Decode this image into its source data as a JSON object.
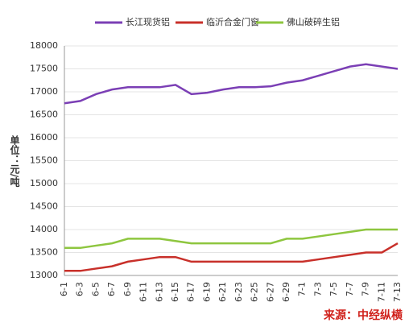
{
  "chart_data": {
    "type": "line",
    "y_label": "单位：元/吨",
    "source": "来源：中经纵横",
    "categories": [
      "6-1",
      "6-3",
      "6-5",
      "6-7",
      "6-9",
      "6-11",
      "6-13",
      "6-15",
      "6-17",
      "6-19",
      "6-21",
      "6-23",
      "6-25",
      "6-27",
      "6-29",
      "7-1",
      "7-3",
      "7-5",
      "7-7",
      "7-9",
      "7-11",
      "7-13"
    ],
    "series": [
      {
        "name": "长江现货铝",
        "color": "#7b3fb5",
        "values": [
          16750,
          16800,
          16950,
          17050,
          17100,
          17100,
          17100,
          17150,
          16950,
          16980,
          17050,
          17100,
          17100,
          17120,
          17200,
          17250,
          17350,
          17450,
          17550,
          17600,
          17550,
          17500
        ]
      },
      {
        "name": "临沂合金门窗",
        "color": "#c8302a",
        "values": [
          13100,
          13100,
          13150,
          13200,
          13300,
          13350,
          13400,
          13400,
          13300,
          13300,
          13300,
          13300,
          13300,
          13300,
          13300,
          13300,
          13350,
          13400,
          13450,
          13500,
          13500,
          13700
        ]
      },
      {
        "name": "佛山破碎生铝",
        "color": "#8ec63f",
        "values": [
          13600,
          13600,
          13650,
          13700,
          13800,
          13800,
          13800,
          13750,
          13700,
          13700,
          13700,
          13700,
          13700,
          13700,
          13800,
          13800,
          13850,
          13900,
          13950,
          14000,
          14000,
          14000
        ]
      }
    ],
    "ylim": [
      13000,
      18000
    ],
    "yticks": [
      13000,
      13500,
      14000,
      14500,
      15000,
      15500,
      16000,
      16500,
      17000,
      17500,
      18000
    ],
    "grid": true
  }
}
